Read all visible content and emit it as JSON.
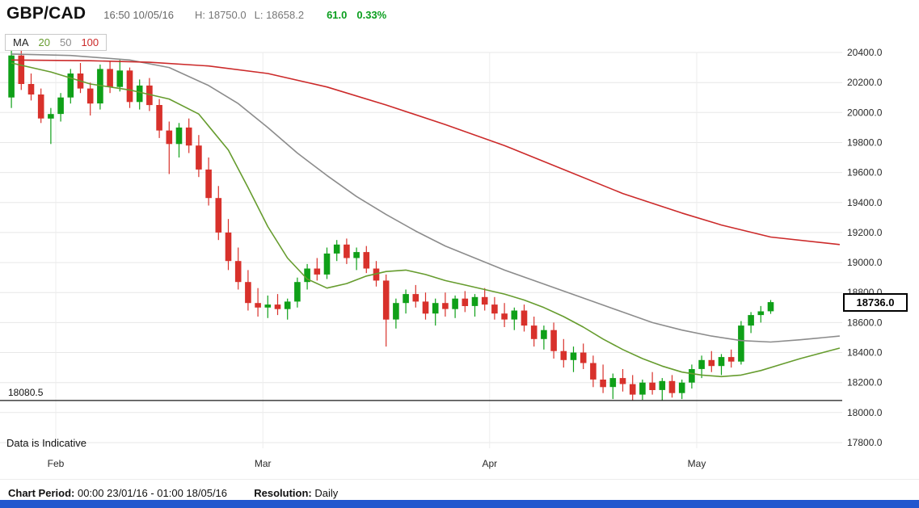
{
  "header": {
    "symbol": "GBP/CAD",
    "timestamp": "16:50 10/05/16",
    "high": "H: 18750.0",
    "low": "L: 18658.2",
    "change": "61.0",
    "change_pct": "0.33%"
  },
  "legend": {
    "label": "MA",
    "periods": [
      {
        "label": "20"
      },
      {
        "label": "50"
      },
      {
        "label": "100"
      }
    ]
  },
  "price_marker": {
    "label": "18736.0",
    "price": 18736.0
  },
  "support_line": {
    "label": "18080.5",
    "price": 18080.5
  },
  "notice": "Data is Indicative",
  "footer": {
    "period_label": "Chart Period:",
    "period_value": "00:00 23/01/16 - 01:00 18/05/16",
    "resolution_label": "Resolution:",
    "resolution_value": "Daily"
  },
  "colors": {
    "positive_change": "#0a9e1e",
    "bottom_bar": "#2157ce"
  },
  "chart_data": {
    "type": "candlestick",
    "title": "GBP/CAD daily candlestick chart with 20/50/100 moving averages",
    "y_axis": {
      "min": 17800,
      "max": 20400,
      "tick_step": 200,
      "ticks": [
        20400,
        20200,
        20000,
        19800,
        19600,
        19400,
        19200,
        19000,
        18800,
        18600,
        18400,
        18200,
        18000,
        17800
      ]
    },
    "x_axis": {
      "months": [
        {
          "label": "Feb",
          "index": 5
        },
        {
          "label": "Mar",
          "index": 26
        },
        {
          "label": "Apr",
          "index": 49
        },
        {
          "label": "May",
          "index": 70
        }
      ]
    },
    "colors": {
      "up": "#0fa018",
      "down": "#d8312b",
      "grid": "#e7e7e7",
      "support": "#1a1a1a"
    },
    "candles": [
      [
        20100,
        20420,
        20030,
        20380
      ],
      [
        20380,
        20430,
        20150,
        20190
      ],
      [
        20190,
        20260,
        20080,
        20120
      ],
      [
        20120,
        20160,
        19930,
        19960
      ],
      [
        19960,
        20030,
        19790,
        19990
      ],
      [
        19990,
        20130,
        19940,
        20100
      ],
      [
        20100,
        20290,
        20060,
        20260
      ],
      [
        20260,
        20330,
        20130,
        20160
      ],
      [
        20160,
        20200,
        19980,
        20060
      ],
      [
        20060,
        20320,
        20020,
        20290
      ],
      [
        20290,
        20340,
        20130,
        20170
      ],
      [
        20170,
        20350,
        20140,
        20280
      ],
      [
        20280,
        20300,
        20030,
        20070
      ],
      [
        20070,
        20220,
        20020,
        20180
      ],
      [
        20180,
        20230,
        20010,
        20050
      ],
      [
        20050,
        20090,
        19830,
        19880
      ],
      [
        19880,
        19940,
        19590,
        19790
      ],
      [
        19790,
        19930,
        19700,
        19900
      ],
      [
        19900,
        19960,
        19730,
        19780
      ],
      [
        19780,
        19850,
        19570,
        19620
      ],
      [
        19620,
        19700,
        19380,
        19430
      ],
      [
        19430,
        19510,
        19150,
        19200
      ],
      [
        19200,
        19290,
        18950,
        19010
      ],
      [
        19010,
        19100,
        18820,
        18870
      ],
      [
        18870,
        18950,
        18680,
        18730
      ],
      [
        18730,
        18830,
        18640,
        18700
      ],
      [
        18700,
        18780,
        18630,
        18720
      ],
      [
        18720,
        18790,
        18650,
        18690
      ],
      [
        18690,
        18760,
        18620,
        18740
      ],
      [
        18740,
        18900,
        18700,
        18870
      ],
      [
        18870,
        18990,
        18820,
        18960
      ],
      [
        18960,
        19030,
        18880,
        18920
      ],
      [
        18920,
        19100,
        18890,
        19060
      ],
      [
        19060,
        19150,
        19010,
        19120
      ],
      [
        19120,
        19160,
        18990,
        19030
      ],
      [
        19030,
        19100,
        18950,
        19070
      ],
      [
        19070,
        19110,
        18930,
        18960
      ],
      [
        18960,
        19010,
        18840,
        18880
      ],
      [
        18880,
        18920,
        18440,
        18620
      ],
      [
        18620,
        18760,
        18560,
        18730
      ],
      [
        18730,
        18820,
        18660,
        18790
      ],
      [
        18790,
        18850,
        18700,
        18740
      ],
      [
        18740,
        18800,
        18620,
        18660
      ],
      [
        18660,
        18760,
        18580,
        18730
      ],
      [
        18730,
        18800,
        18640,
        18690
      ],
      [
        18690,
        18780,
        18630,
        18760
      ],
      [
        18760,
        18810,
        18670,
        18710
      ],
      [
        18710,
        18790,
        18640,
        18770
      ],
      [
        18770,
        18830,
        18680,
        18720
      ],
      [
        18720,
        18770,
        18620,
        18660
      ],
      [
        18660,
        18730,
        18570,
        18620
      ],
      [
        18620,
        18700,
        18550,
        18680
      ],
      [
        18680,
        18720,
        18540,
        18580
      ],
      [
        18580,
        18640,
        18440,
        18490
      ],
      [
        18490,
        18580,
        18420,
        18550
      ],
      [
        18550,
        18600,
        18360,
        18410
      ],
      [
        18410,
        18490,
        18300,
        18350
      ],
      [
        18350,
        18440,
        18270,
        18400
      ],
      [
        18400,
        18460,
        18290,
        18330
      ],
      [
        18330,
        18380,
        18170,
        18220
      ],
      [
        18220,
        18320,
        18130,
        18170
      ],
      [
        18170,
        18260,
        18090,
        18230
      ],
      [
        18230,
        18290,
        18140,
        18190
      ],
      [
        18190,
        18250,
        18080,
        18120
      ],
      [
        18120,
        18220,
        18085,
        18200
      ],
      [
        18200,
        18270,
        18120,
        18150
      ],
      [
        18150,
        18230,
        18081,
        18210
      ],
      [
        18210,
        18250,
        18100,
        18130
      ],
      [
        18130,
        18220,
        18090,
        18200
      ],
      [
        18200,
        18320,
        18160,
        18290
      ],
      [
        18290,
        18380,
        18230,
        18350
      ],
      [
        18350,
        18410,
        18270,
        18310
      ],
      [
        18310,
        18390,
        18250,
        18370
      ],
      [
        18370,
        18420,
        18300,
        18340
      ],
      [
        18340,
        18610,
        18320,
        18580
      ],
      [
        18580,
        18670,
        18530,
        18650
      ],
      [
        18650,
        18710,
        18600,
        18675
      ],
      [
        18675,
        18750,
        18658,
        18736
      ]
    ],
    "moving_averages": [
      {
        "name": "MA20",
        "color": "#669c2e",
        "points": [
          [
            0,
            20330
          ],
          [
            4,
            20270
          ],
          [
            8,
            20190
          ],
          [
            12,
            20150
          ],
          [
            16,
            20090
          ],
          [
            19,
            19990
          ],
          [
            22,
            19750
          ],
          [
            24,
            19500
          ],
          [
            26,
            19240
          ],
          [
            28,
            19030
          ],
          [
            30,
            18890
          ],
          [
            32,
            18830
          ],
          [
            34,
            18860
          ],
          [
            36,
            18910
          ],
          [
            38,
            18940
          ],
          [
            40,
            18950
          ],
          [
            42,
            18920
          ],
          [
            44,
            18880
          ],
          [
            46,
            18850
          ],
          [
            48,
            18820
          ],
          [
            50,
            18790
          ],
          [
            52,
            18750
          ],
          [
            54,
            18700
          ],
          [
            56,
            18640
          ],
          [
            58,
            18570
          ],
          [
            60,
            18490
          ],
          [
            62,
            18420
          ],
          [
            64,
            18360
          ],
          [
            66,
            18310
          ],
          [
            68,
            18270
          ],
          [
            70,
            18250
          ],
          [
            72,
            18240
          ],
          [
            74,
            18250
          ],
          [
            76,
            18280
          ],
          [
            78,
            18320
          ],
          [
            80,
            18360
          ],
          [
            84,
            18430
          ]
        ]
      },
      {
        "name": "MA50",
        "color": "#8c8c8c",
        "points": [
          [
            0,
            20390
          ],
          [
            6,
            20380
          ],
          [
            12,
            20350
          ],
          [
            16,
            20300
          ],
          [
            20,
            20180
          ],
          [
            23,
            20060
          ],
          [
            26,
            19900
          ],
          [
            29,
            19730
          ],
          [
            32,
            19580
          ],
          [
            35,
            19440
          ],
          [
            38,
            19320
          ],
          [
            41,
            19210
          ],
          [
            44,
            19110
          ],
          [
            47,
            19030
          ],
          [
            50,
            18950
          ],
          [
            53,
            18880
          ],
          [
            56,
            18810
          ],
          [
            59,
            18740
          ],
          [
            62,
            18670
          ],
          [
            65,
            18600
          ],
          [
            68,
            18550
          ],
          [
            71,
            18510
          ],
          [
            74,
            18480
          ],
          [
            77,
            18470
          ],
          [
            80,
            18485
          ],
          [
            84,
            18510
          ]
        ]
      },
      {
        "name": "MA100",
        "color": "#cc2a2a",
        "points": [
          [
            0,
            20350
          ],
          [
            8,
            20345
          ],
          [
            14,
            20335
          ],
          [
            20,
            20310
          ],
          [
            26,
            20260
          ],
          [
            32,
            20170
          ],
          [
            38,
            20050
          ],
          [
            44,
            19920
          ],
          [
            50,
            19780
          ],
          [
            56,
            19620
          ],
          [
            62,
            19460
          ],
          [
            68,
            19330
          ],
          [
            72,
            19250
          ],
          [
            77,
            19170
          ],
          [
            84,
            19120
          ]
        ]
      }
    ]
  }
}
